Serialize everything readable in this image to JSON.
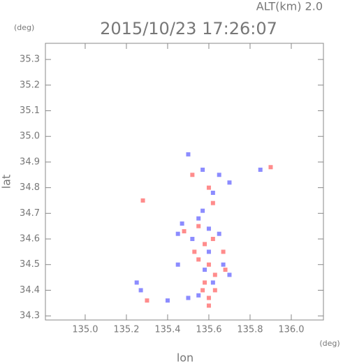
{
  "chart_data": {
    "type": "scatter",
    "title": "2015/10/23 17:26:07",
    "altitude_label": "ALT(km) 2.0",
    "ylabel": "lat",
    "xlabel": "lon",
    "yunit": "(deg)",
    "xunit": "(deg)",
    "xlim": [
      134.807,
      136.156
    ],
    "ylim": [
      34.284,
      35.363
    ],
    "xticks": [
      {
        "value": 135,
        "label": "135.0"
      },
      135.2,
      135.4,
      135.6,
      135.8,
      {
        "value": 136,
        "label": "136.0"
      }
    ],
    "yticks": [
      34.3,
      34.4,
      34.5,
      34.6,
      34.7,
      34.8,
      34.9,
      {
        "value": 35,
        "label": "35.0"
      },
      35.1,
      35.2,
      35.3
    ],
    "series": [
      {
        "color": "#8c8cff",
        "x": [
          135.5,
          135.57,
          135.65,
          135.7,
          135.47,
          135.55,
          135.6,
          135.52,
          135.65,
          135.6,
          135.67,
          135.7,
          135.62,
          135.25,
          135.27,
          135.4,
          135.5,
          135.55,
          135.45,
          135.57,
          135.85,
          135.62,
          135.45,
          135.58
        ],
        "y": [
          34.93,
          34.87,
          34.85,
          34.82,
          34.66,
          34.68,
          34.64,
          34.6,
          34.62,
          34.55,
          34.5,
          34.46,
          34.43,
          34.43,
          34.4,
          34.36,
          34.37,
          34.38,
          34.5,
          34.71,
          34.87,
          34.78,
          34.62,
          34.48
        ]
      },
      {
        "color": "#ff8c8c",
        "x": [
          135.28,
          135.52,
          135.6,
          135.55,
          135.58,
          135.62,
          135.53,
          135.6,
          135.63,
          135.58,
          135.63,
          135.57,
          135.6,
          135.3,
          135.55,
          135.67,
          135.68,
          135.48,
          135.9,
          135.62,
          135.6
        ],
        "y": [
          34.75,
          34.85,
          34.8,
          34.65,
          34.58,
          34.6,
          34.55,
          34.5,
          34.46,
          34.43,
          34.4,
          34.4,
          34.37,
          34.36,
          34.52,
          34.55,
          34.48,
          34.63,
          34.88,
          34.74,
          34.34
        ]
      }
    ]
  }
}
